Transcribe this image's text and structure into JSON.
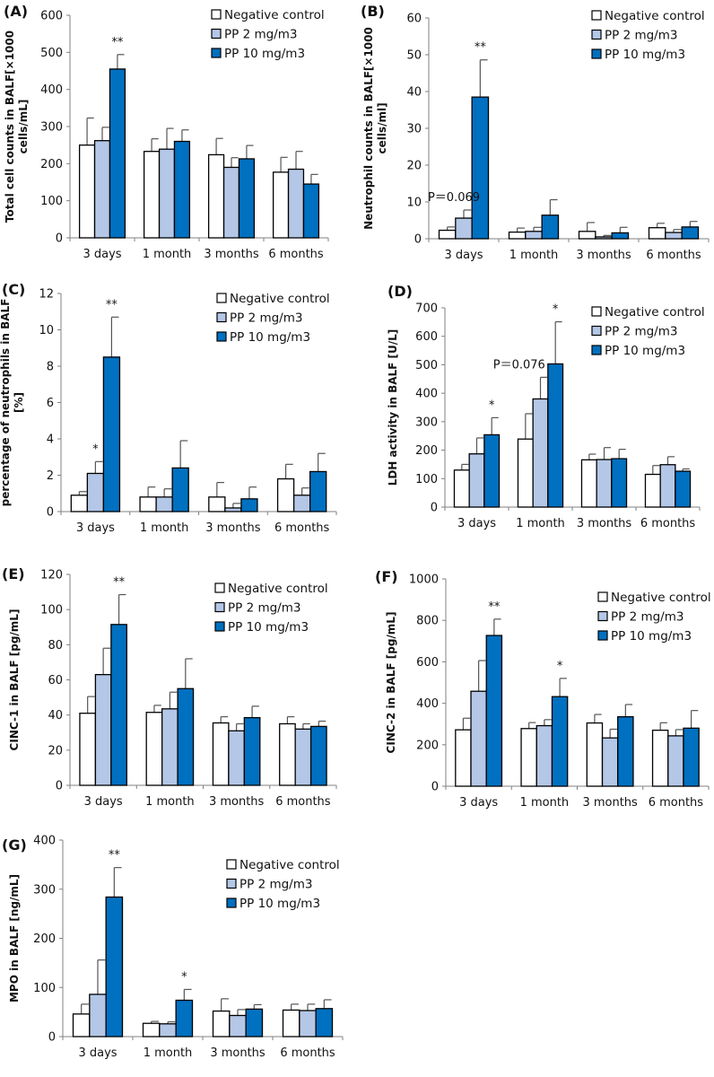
{
  "legend": [
    "Negative control",
    "PP 2 mg/m3",
    "PP 10 mg/m3"
  ],
  "colors": {
    "Negative control": "#ffffff",
    "PP 2 mg/m3": "#b4c7e7",
    "PP 10 mg/m3": "#0070c0",
    "stroke": "#000000",
    "axis": "#808080"
  },
  "chart_data": [
    {
      "panel": "(A)",
      "type": "bar",
      "categories": [
        "3 days",
        "1 month",
        "3 months",
        "6 months"
      ],
      "ylabel": [
        "Total cell counts in BALF[×1000",
        "cells/mL]"
      ],
      "ylim": [
        0,
        600
      ],
      "yticks": [
        0,
        100,
        200,
        300,
        400,
        500,
        600
      ],
      "series": [
        {
          "name": "Negative control",
          "values": [
            250,
            233,
            224,
            177
          ],
          "error_upper": [
            323,
            267,
            268,
            217
          ]
        },
        {
          "name": "PP 2 mg/m3",
          "values": [
            262,
            239,
            190,
            185
          ],
          "error_upper": [
            298,
            295,
            216,
            233
          ]
        },
        {
          "name": "PP 10 mg/m3",
          "values": [
            455,
            260,
            213,
            145
          ],
          "error_upper": [
            494,
            291,
            249,
            171
          ]
        }
      ],
      "annotations": [
        {
          "series": 2,
          "category": 0,
          "text": "**",
          "placement": "above"
        }
      ],
      "legend_position": "top-right"
    },
    {
      "panel": "(B)",
      "type": "bar",
      "categories": [
        "3 days",
        "1 month",
        "3 months",
        "6 months"
      ],
      "ylabel": [
        "Neutrophil counts in BALF[×1000",
        "cells/ml]"
      ],
      "ylim": [
        0,
        60
      ],
      "yticks": [
        0,
        10,
        20,
        30,
        40,
        50,
        60
      ],
      "series": [
        {
          "name": "Negative control",
          "values": [
            2.3,
            1.8,
            2.0,
            3.0
          ],
          "error_upper": [
            3.2,
            2.9,
            4.4,
            4.2
          ]
        },
        {
          "name": "PP 2 mg/m3",
          "values": [
            5.6,
            2.0,
            0.5,
            1.7
          ],
          "error_upper": [
            7.8,
            3.1,
            0.9,
            2.5
          ]
        },
        {
          "name": "PP 10 mg/m3",
          "values": [
            38.5,
            6.4,
            1.6,
            3.2
          ],
          "error_upper": [
            48.6,
            10.6,
            3.1,
            4.7
          ]
        }
      ],
      "annotations": [
        {
          "series": 2,
          "category": 0,
          "text": "**",
          "placement": "above"
        },
        {
          "series": 1,
          "category": 0,
          "text": "P＝0.069",
          "placement": "above"
        }
      ],
      "legend_position": "top-right"
    },
    {
      "panel": "(C)",
      "type": "bar",
      "categories": [
        "3 days",
        "1 month",
        "3 months",
        "6 months"
      ],
      "ylabel": [
        "percentage of neutrophils in BALF",
        "[%]"
      ],
      "ylim": [
        0,
        12
      ],
      "yticks": [
        0,
        2,
        4,
        6,
        8,
        10,
        12
      ],
      "series": [
        {
          "name": "Negative control",
          "values": [
            0.9,
            0.8,
            0.8,
            1.8
          ],
          "error_upper": [
            1.1,
            1.35,
            1.6,
            2.6
          ]
        },
        {
          "name": "PP 2 mg/m3",
          "values": [
            2.1,
            0.8,
            0.2,
            0.9
          ],
          "error_upper": [
            2.75,
            1.25,
            0.45,
            1.3
          ]
        },
        {
          "name": "PP 10 mg/m3",
          "values": [
            8.5,
            2.4,
            0.7,
            2.2
          ],
          "error_upper": [
            10.7,
            3.9,
            1.35,
            3.2
          ]
        }
      ],
      "annotations": [
        {
          "series": 1,
          "category": 0,
          "text": "*",
          "placement": "above"
        },
        {
          "series": 2,
          "category": 0,
          "text": "**",
          "placement": "above"
        }
      ],
      "legend_position": "top-right"
    },
    {
      "panel": "(D)",
      "type": "bar",
      "categories": [
        "3 days",
        "1 month",
        "3 months",
        "6 months"
      ],
      "ylabel": [
        "LDH activity in BALF [U/L]"
      ],
      "ylim": [
        0,
        700
      ],
      "yticks": [
        0,
        100,
        200,
        300,
        400,
        500,
        600,
        700
      ],
      "series": [
        {
          "name": "Negative control",
          "values": [
            130,
            239,
            166,
            115
          ],
          "error_upper": [
            150,
            328,
            186,
            146
          ]
        },
        {
          "name": "PP 2 mg/m3",
          "values": [
            187,
            380,
            167,
            149
          ],
          "error_upper": [
            243,
            456,
            209,
            177
          ]
        },
        {
          "name": "PP 10 mg/m3",
          "values": [
            254,
            503,
            170,
            126
          ],
          "error_upper": [
            314,
            651,
            203,
            134
          ]
        }
      ],
      "annotations": [
        {
          "series": 2,
          "category": 0,
          "text": "*",
          "placement": "above"
        },
        {
          "series": 2,
          "category": 1,
          "text": "*",
          "placement": "above"
        },
        {
          "series": 2,
          "category": 1,
          "text": "P＝0.076",
          "placement": "left"
        }
      ],
      "legend_position": "top-right"
    },
    {
      "panel": "(E)",
      "type": "bar",
      "categories": [
        "3 days",
        "1 month",
        "3 months",
        "6 months"
      ],
      "ylabel": [
        "CINC-1 in BALF [pg/mL]"
      ],
      "ylim": [
        0,
        120
      ],
      "yticks": [
        0,
        20,
        40,
        60,
        80,
        100,
        120
      ],
      "series": [
        {
          "name": "Negative control",
          "values": [
            41,
            41.5,
            35.5,
            35
          ],
          "error_upper": [
            50.5,
            45.5,
            39,
            39
          ]
        },
        {
          "name": "PP 2 mg/m3",
          "values": [
            63,
            43.5,
            31,
            32
          ],
          "error_upper": [
            78,
            53,
            35,
            35
          ]
        },
        {
          "name": "PP 10 mg/m3",
          "values": [
            91.5,
            55,
            38.5,
            33.5
          ],
          "error_upper": [
            108.5,
            72,
            45,
            36.5
          ]
        }
      ],
      "annotations": [
        {
          "series": 2,
          "category": 0,
          "text": "**",
          "placement": "above"
        }
      ],
      "legend_position": "top-right"
    },
    {
      "panel": "(F)",
      "type": "bar",
      "categories": [
        "3 days",
        "1 month",
        "3 months",
        "6 months"
      ],
      "ylabel": [
        "CINC-2 in BALF [pg/mL]"
      ],
      "ylim": [
        0,
        1000
      ],
      "yticks": [
        0,
        200,
        400,
        600,
        800,
        1000
      ],
      "series": [
        {
          "name": "Negative control",
          "values": [
            272,
            278,
            305,
            270
          ],
          "error_upper": [
            328,
            307,
            346,
            306
          ]
        },
        {
          "name": "PP 2 mg/m3",
          "values": [
            458,
            292,
            233,
            243
          ],
          "error_upper": [
            606,
            321,
            275,
            273
          ]
        },
        {
          "name": "PP 10 mg/m3",
          "values": [
            727,
            432,
            335,
            280
          ],
          "error_upper": [
            806,
            520,
            394,
            365
          ]
        }
      ],
      "annotations": [
        {
          "series": 2,
          "category": 0,
          "text": "**",
          "placement": "above"
        },
        {
          "series": 2,
          "category": 1,
          "text": "*",
          "placement": "above"
        }
      ],
      "legend_position": "top-right"
    },
    {
      "panel": "(G)",
      "type": "bar",
      "categories": [
        "3 days",
        "1 month",
        "3 months",
        "6 months"
      ],
      "ylabel": [
        "MPO in BALF [ng/mL]"
      ],
      "ylim": [
        0,
        400
      ],
      "yticks": [
        0,
        100,
        200,
        300,
        400
      ],
      "series": [
        {
          "name": "Negative control",
          "values": [
            46,
            27,
            52,
            54
          ],
          "error_upper": [
            66,
            31,
            77,
            66
          ]
        },
        {
          "name": "PP 2 mg/m3",
          "values": [
            86,
            26,
            43,
            53
          ],
          "error_upper": [
            156,
            30,
            55,
            66
          ]
        },
        {
          "name": "PP 10 mg/m3",
          "values": [
            284,
            74,
            56,
            57
          ],
          "error_upper": [
            344,
            96,
            65,
            75
          ]
        }
      ],
      "annotations": [
        {
          "series": 2,
          "category": 0,
          "text": "**",
          "placement": "above"
        },
        {
          "series": 2,
          "category": 1,
          "text": "*",
          "placement": "above"
        }
      ],
      "legend_position": "top-right"
    }
  ]
}
